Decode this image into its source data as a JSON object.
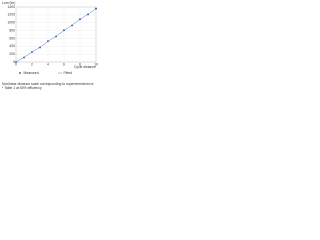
{
  "chart_data": {
    "type": "line",
    "y_label": "Lum (lm)",
    "x_label": "Cycle distance",
    "x": [
      0,
      1,
      2,
      3,
      4,
      5,
      6,
      7,
      8,
      9,
      10
    ],
    "series": [
      {
        "name": "Measured",
        "color": "#1f3f8f",
        "marker": "dot",
        "values": [
          0,
          115,
          255,
          370,
          530,
          650,
          810,
          930,
          1090,
          1210,
          1360
        ]
      },
      {
        "name": "Fitted",
        "color": "#4a7fd0",
        "marker": "none",
        "values": [
          0,
          120,
          250,
          380,
          520,
          660,
          800,
          940,
          1080,
          1220,
          1350
        ]
      }
    ],
    "xlim": [
      0,
      10
    ],
    "xticks": [
      0,
      2,
      4,
      6,
      8,
      10
    ],
    "ylim": [
      0,
      1400
    ],
    "yticks": [
      0,
      200,
      400,
      600,
      800,
      1000,
      1200,
      1400
    ],
    "grid": true,
    "legend": "bottom",
    "notes": [
      "Nonlinear distance scale corresponding to experimental error",
      "* Table 1 at 50% efficiency"
    ]
  }
}
